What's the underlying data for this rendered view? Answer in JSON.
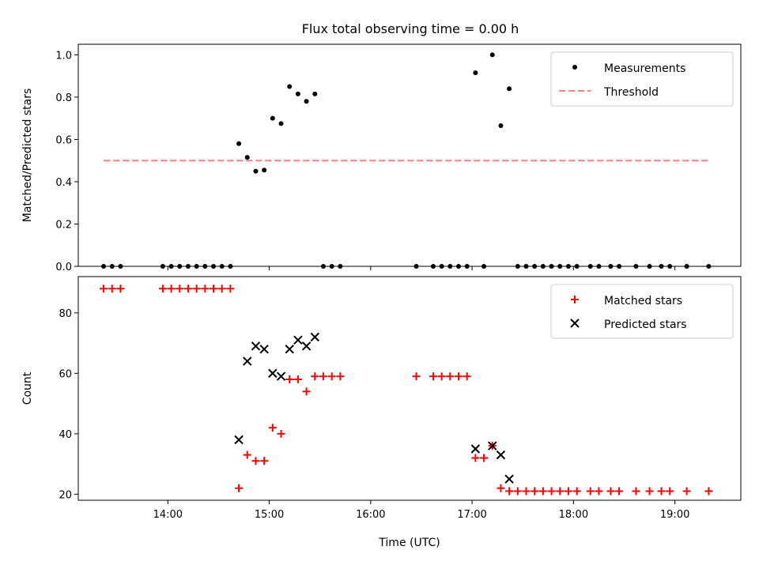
{
  "figure": {
    "title": "Flux total observing time = 0.00 h"
  },
  "chart_data": [
    {
      "type": "scatter",
      "ylabel": "Matched/Predicted stars",
      "xlim": [
        "13:07",
        "19:39"
      ],
      "ylim": [
        0,
        1.05
      ],
      "yticks": [
        "0.0",
        "0.2",
        "0.4",
        "0.6",
        "0.8",
        "1.0"
      ],
      "legend_position": "top-right",
      "series": [
        {
          "name": "Measurements",
          "marker": "dot",
          "color": "#000000",
          "points": [
            [
              "13:22",
              0
            ],
            [
              "13:27",
              0
            ],
            [
              "13:32",
              0
            ],
            [
              "13:57",
              0
            ],
            [
              "14:02",
              0
            ],
            [
              "14:07",
              0
            ],
            [
              "14:12",
              0
            ],
            [
              "14:17",
              0
            ],
            [
              "14:22",
              0
            ],
            [
              "14:27",
              0
            ],
            [
              "14:32",
              0
            ],
            [
              "14:37",
              0
            ],
            [
              "14:42",
              0.58
            ],
            [
              "14:47",
              0.515
            ],
            [
              "14:52",
              0.45
            ],
            [
              "14:57",
              0.455
            ],
            [
              "15:02",
              0.7
            ],
            [
              "15:07",
              0.675
            ],
            [
              "15:12",
              0.85
            ],
            [
              "15:17",
              0.815
            ],
            [
              "15:22",
              0.78
            ],
            [
              "15:27",
              0.815
            ],
            [
              "15:32",
              0
            ],
            [
              "15:37",
              0
            ],
            [
              "15:42",
              0
            ],
            [
              "16:27",
              0
            ],
            [
              "16:37",
              0
            ],
            [
              "16:42",
              0
            ],
            [
              "16:47",
              0
            ],
            [
              "16:52",
              0
            ],
            [
              "16:57",
              0
            ],
            [
              "17:02",
              0.915
            ],
            [
              "17:07",
              0
            ],
            [
              "17:12",
              1.0
            ],
            [
              "17:17",
              0.665
            ],
            [
              "17:22",
              0.84
            ],
            [
              "17:27",
              0
            ],
            [
              "17:32",
              0
            ],
            [
              "17:37",
              0
            ],
            [
              "17:42",
              0
            ],
            [
              "17:47",
              0
            ],
            [
              "17:52",
              0
            ],
            [
              "17:57",
              0
            ],
            [
              "18:02",
              0
            ],
            [
              "18:10",
              0
            ],
            [
              "18:15",
              0
            ],
            [
              "18:22",
              0
            ],
            [
              "18:27",
              0
            ],
            [
              "18:37",
              0
            ],
            [
              "18:45",
              0
            ],
            [
              "18:52",
              0
            ],
            [
              "18:57",
              0
            ],
            [
              "19:07",
              0
            ],
            [
              "19:20",
              0
            ]
          ]
        },
        {
          "name": "Threshold",
          "style": "dashed",
          "color": "#ff7f7f",
          "points": [
            [
              "13:22",
              0.5
            ],
            [
              "19:20",
              0.5
            ]
          ]
        }
      ]
    },
    {
      "type": "scatter",
      "xlabel": "Time (UTC)",
      "ylabel": "Count",
      "xlim": [
        "13:07",
        "19:39"
      ],
      "ylim": [
        18,
        92
      ],
      "yticks": [
        "20",
        "40",
        "60",
        "80"
      ],
      "xticks": [
        "14:00",
        "15:00",
        "16:00",
        "17:00",
        "18:00",
        "19:00"
      ],
      "legend_position": "top-right",
      "series": [
        {
          "name": "Matched stars",
          "marker": "plus",
          "color": "#ff0000",
          "points": [
            [
              "13:22",
              88
            ],
            [
              "13:27",
              88
            ],
            [
              "13:32",
              88
            ],
            [
              "13:57",
              88
            ],
            [
              "14:02",
              88
            ],
            [
              "14:07",
              88
            ],
            [
              "14:12",
              88
            ],
            [
              "14:17",
              88
            ],
            [
              "14:22",
              88
            ],
            [
              "14:27",
              88
            ],
            [
              "14:32",
              88
            ],
            [
              "14:37",
              88
            ],
            [
              "14:42",
              22
            ],
            [
              "14:47",
              33
            ],
            [
              "14:52",
              31
            ],
            [
              "14:57",
              31
            ],
            [
              "15:02",
              42
            ],
            [
              "15:07",
              40
            ],
            [
              "15:12",
              58
            ],
            [
              "15:17",
              58
            ],
            [
              "15:22",
              54
            ],
            [
              "15:27",
              59
            ],
            [
              "15:32",
              59
            ],
            [
              "15:37",
              59
            ],
            [
              "15:42",
              59
            ],
            [
              "16:27",
              59
            ],
            [
              "16:37",
              59
            ],
            [
              "16:42",
              59
            ],
            [
              "16:47",
              59
            ],
            [
              "16:52",
              59
            ],
            [
              "16:57",
              59
            ],
            [
              "17:02",
              32
            ],
            [
              "17:07",
              32
            ],
            [
              "17:12",
              36
            ],
            [
              "17:17",
              22
            ],
            [
              "17:22",
              21
            ],
            [
              "17:27",
              21
            ],
            [
              "17:32",
              21
            ],
            [
              "17:37",
              21
            ],
            [
              "17:42",
              21
            ],
            [
              "17:47",
              21
            ],
            [
              "17:52",
              21
            ],
            [
              "17:57",
              21
            ],
            [
              "18:02",
              21
            ],
            [
              "18:10",
              21
            ],
            [
              "18:15",
              21
            ],
            [
              "18:22",
              21
            ],
            [
              "18:27",
              21
            ],
            [
              "18:37",
              21
            ],
            [
              "18:45",
              21
            ],
            [
              "18:52",
              21
            ],
            [
              "18:57",
              21
            ],
            [
              "19:07",
              21
            ],
            [
              "19:20",
              21
            ]
          ]
        },
        {
          "name": "Predicted stars",
          "marker": "x",
          "color": "#000000",
          "points": [
            [
              "14:42",
              38
            ],
            [
              "14:47",
              64
            ],
            [
              "14:52",
              69
            ],
            [
              "14:57",
              68
            ],
            [
              "15:02",
              60
            ],
            [
              "15:07",
              59
            ],
            [
              "15:12",
              68
            ],
            [
              "15:17",
              71
            ],
            [
              "15:22",
              69
            ],
            [
              "15:27",
              72
            ],
            [
              "17:02",
              35
            ],
            [
              "17:12",
              36
            ],
            [
              "17:17",
              33
            ],
            [
              "17:22",
              25
            ]
          ]
        }
      ]
    }
  ]
}
